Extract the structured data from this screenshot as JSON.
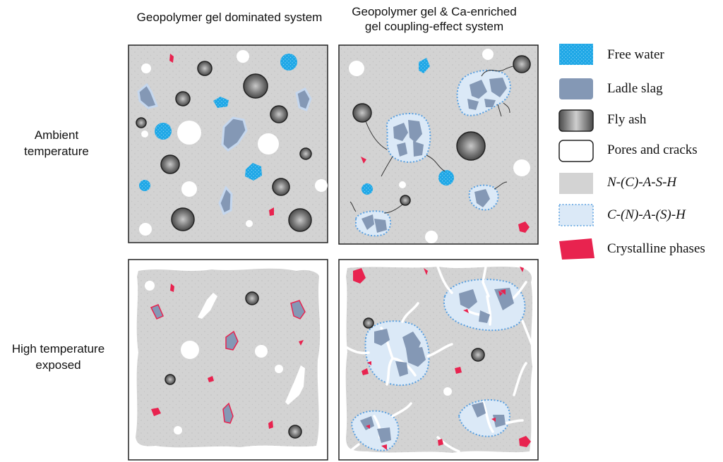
{
  "columns": {
    "left": "Geopolymer gel dominated system",
    "right_line1": "Geopolymer gel & Ca-enriched",
    "right_line2": "gel coupling-effect system"
  },
  "rows": {
    "top_line1": "Ambient",
    "top_line2": "temperature",
    "bottom_line1": "High temperature",
    "bottom_line2": "exposed"
  },
  "legend": [
    {
      "label": "Free water",
      "color": "#1ea7e6",
      "icon": "free-water"
    },
    {
      "label": "Ladle slag",
      "color": "#8498b5",
      "icon": "ladle-slag"
    },
    {
      "label": "Fly ash",
      "color": "#6b6b6b",
      "icon": "fly-ash"
    },
    {
      "label": "Pores and cracks",
      "color": "#ffffff",
      "icon": "pores-and-cracks"
    },
    {
      "label": "N-(C)-A-S-H",
      "color": "#d3d3d3",
      "icon": "n-c-a-s-h"
    },
    {
      "label": "C-(N)-A-(S)-H",
      "color": "#dbe9f7",
      "icon": "c-n-a-s-h"
    },
    {
      "label": "Crystalline phases",
      "color": "#e8234f",
      "icon": "crystalline-phases"
    }
  ]
}
